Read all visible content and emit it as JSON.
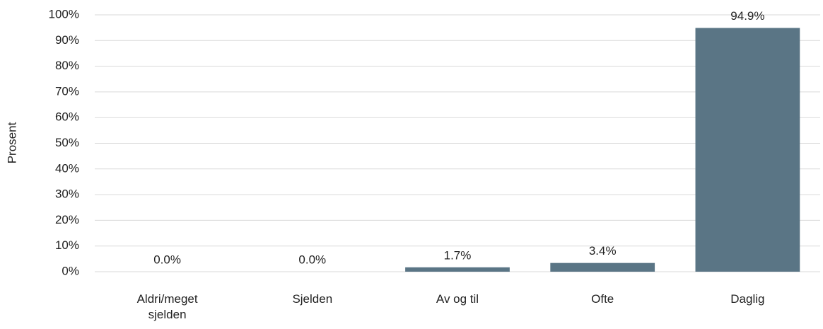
{
  "chart_data": {
    "type": "bar",
    "y_axis_label": "Prosent",
    "categories": [
      "Aldri/meget sjelden",
      "Sjelden",
      "Av og til",
      "Ofte",
      "Daglig"
    ],
    "values": [
      0,
      0,
      1.7,
      3.4,
      94.9
    ],
    "value_labels": [
      "0.0%",
      "0.0%",
      "1.7%",
      "3.4%",
      "94.9%"
    ],
    "color": "#5a7585",
    "ylim": [
      0,
      100
    ],
    "yticks": [
      {
        "value": 0,
        "label": "0%"
      },
      {
        "value": 10,
        "label": "10%"
      },
      {
        "value": 20,
        "label": "20%"
      },
      {
        "value": 30,
        "label": "30%"
      },
      {
        "value": 40,
        "label": "40%"
      },
      {
        "value": 50,
        "label": "50%"
      },
      {
        "value": 60,
        "label": "60%"
      },
      {
        "value": 70,
        "label": "70%"
      },
      {
        "value": 80,
        "label": "80%"
      },
      {
        "value": 90,
        "label": "90%"
      },
      {
        "value": 100,
        "label": "100%"
      }
    ],
    "grid": true
  }
}
